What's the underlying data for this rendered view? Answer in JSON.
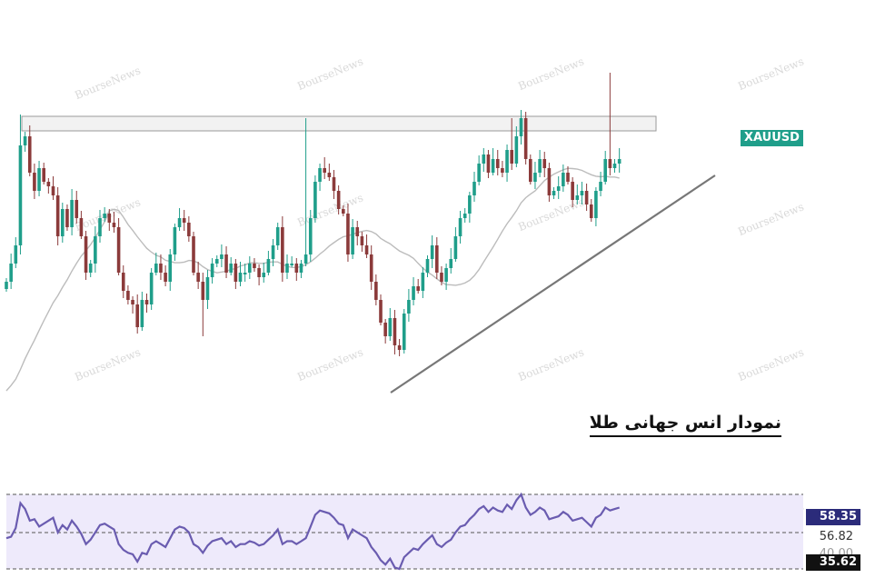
{
  "caption": "نمودار انس جهانی طلا",
  "ticker": "XAUUSD",
  "watermark": "BourseNews",
  "colors": {
    "up": "#1f9e8a",
    "down": "#8b3a3a",
    "ma": "#bcbcbc",
    "trendline": "#777777",
    "resistance_fill": "#f2f2f2",
    "resistance_stroke": "#9a9a9a",
    "rsi_line": "#6a5cb0",
    "rsi_band": "#eeeafb",
    "rsi_badge": "#2b2b7a"
  },
  "rsi_panel": {
    "current": "58.35",
    "level_mid": "56.82",
    "level_hidden": "40.00",
    "low": "35.62"
  },
  "chart_data": [
    {
      "type": "candlestick",
      "series_name": "XAUUSD",
      "close": [
        310,
        290,
        270,
        160,
        150,
        190,
        210,
        185,
        200,
        205,
        215,
        260,
        230,
        250,
        220,
        240,
        260,
        300,
        290,
        260,
        240,
        235,
        245,
        250,
        300,
        320,
        330,
        335,
        360,
        330,
        335,
        300,
        290,
        300,
        310,
        280,
        250,
        240,
        245,
        260,
        300,
        310,
        330,
        305,
        290,
        285,
        280,
        300,
        290,
        310,
        300,
        300,
        290,
        295,
        305,
        300,
        285,
        270,
        250,
        300,
        290,
        290,
        300,
        290,
        280,
        240,
        200,
        185,
        190,
        195,
        210,
        230,
        235,
        280,
        250,
        260,
        270,
        280,
        310,
        330,
        355,
        370,
        350,
        380,
        385,
        345,
        330,
        315,
        320,
        300,
        285,
        270,
        300,
        310,
        295,
        285,
        260,
        240,
        235,
        215,
        200,
        180,
        170,
        190,
        175,
        185,
        190,
        165,
        180,
        150,
        130,
        175,
        200,
        190,
        175,
        185,
        215,
        210,
        205,
        190,
        200,
        220,
        215,
        210,
        225,
        240,
        210,
        200,
        175,
        185,
        180,
        175
      ],
      "resistance_zone": [
        128,
        144
      ],
      "trendline": [
        [
          430,
          432
        ],
        [
          787,
          193
        ]
      ]
    },
    {
      "type": "line",
      "series_name": "RSI",
      "values": [
        48,
        49,
        55,
        72,
        68,
        60,
        61,
        56,
        58,
        60,
        62,
        52,
        57,
        54,
        60,
        56,
        51,
        44,
        47,
        52,
        57,
        58,
        56,
        54,
        44,
        40,
        38,
        37,
        32,
        38,
        37,
        44,
        46,
        44,
        42,
        48,
        54,
        56,
        55,
        52,
        44,
        42,
        38,
        43,
        46,
        47,
        48,
        44,
        46,
        42,
        44,
        44,
        46,
        45,
        43,
        44,
        47,
        50,
        54,
        44,
        46,
        46,
        44,
        46,
        48,
        56,
        64,
        67,
        66,
        65,
        62,
        58,
        57,
        48,
        54,
        52,
        50,
        48,
        42,
        38,
        33,
        30,
        34,
        28,
        27,
        35,
        38,
        41,
        40,
        44,
        47,
        50,
        44,
        42,
        45,
        47,
        52,
        56,
        57,
        61,
        64,
        68,
        70,
        66,
        69,
        67,
        66,
        71,
        68,
        74,
        78,
        69,
        64,
        66,
        69,
        67,
        61,
        62,
        63,
        66,
        64,
        60,
        61,
        62,
        59,
        56,
        62,
        64,
        69,
        67,
        68,
        69
      ],
      "reference_levels": [
        56.82,
        40.0
      ]
    }
  ]
}
